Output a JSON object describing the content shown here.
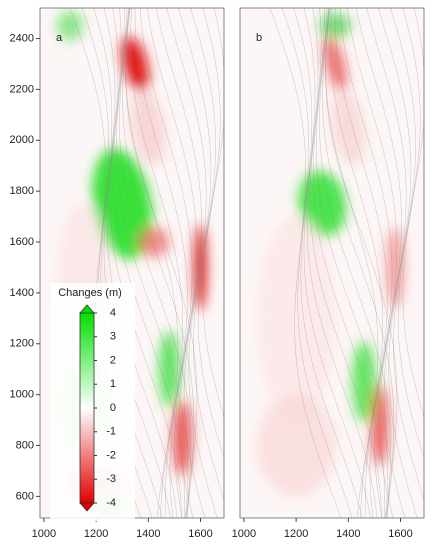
{
  "chart_data": [
    {
      "type": "map",
      "label": "a",
      "xlim": [
        985,
        1690
      ],
      "ylim": [
        515,
        2520
      ],
      "xticks": [
        1000,
        1200,
        1400,
        1600
      ],
      "yticks": [
        600,
        800,
        1000,
        1200,
        1400,
        1600,
        1800,
        2000,
        2200,
        2400
      ],
      "colorbar": {
        "title": "Changes (m)",
        "ticks": [
          4,
          3,
          2,
          1,
          0,
          -1,
          -2,
          -3,
          -4
        ],
        "colors": [
          "#00e000",
          "#ffffff",
          "#e00000"
        ]
      }
    },
    {
      "type": "map",
      "label": "b",
      "xlim": [
        985,
        1690
      ],
      "ylim": [
        515,
        2520
      ],
      "xticks": [
        1000,
        1200,
        1400,
        1600
      ]
    }
  ]
}
